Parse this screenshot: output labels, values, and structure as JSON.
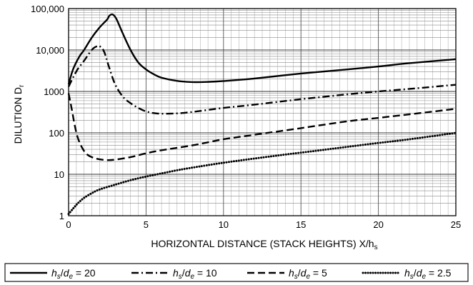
{
  "chart_data": {
    "type": "line",
    "xlabel": "HORIZONTAL DISTANCE (STACK HEIGHTS) X/h",
    "xlabel_sub": "s",
    "ylabel": "DILUTION D",
    "ylabel_sub": "r",
    "x_scale": "linear",
    "y_scale": "log",
    "xlim": [
      0,
      25
    ],
    "ylim": [
      1,
      100000
    ],
    "x_ticks": [
      0,
      5,
      10,
      15,
      20,
      25
    ],
    "x_tick_labels": [
      "0",
      "5",
      "10",
      "15",
      "20",
      "25"
    ],
    "y_ticks": [
      1,
      10,
      100,
      1000,
      10000,
      100000
    ],
    "y_tick_labels": [
      "1",
      "10",
      "100",
      "1000",
      "10,000",
      "100,000"
    ],
    "grid": true,
    "legend_position": "bottom",
    "series": [
      {
        "name": "h",
        "legend": {
          "a": "h",
          "a_sub": "s",
          "b": "d",
          "b_sub": "e",
          "value": "= 20"
        },
        "style": "solid",
        "points": [
          [
            0,
            1500
          ],
          [
            0.3,
            3500
          ],
          [
            0.7,
            7000
          ],
          [
            1,
            10000
          ],
          [
            1.5,
            20000
          ],
          [
            2,
            35000
          ],
          [
            2.5,
            55000
          ],
          [
            2.6,
            65000
          ],
          [
            2.75,
            72000
          ],
          [
            2.9,
            70000
          ],
          [
            3.1,
            55000
          ],
          [
            3.5,
            25000
          ],
          [
            4,
            10000
          ],
          [
            4.5,
            5000
          ],
          [
            5,
            3400
          ],
          [
            5.5,
            2600
          ],
          [
            6,
            2150
          ],
          [
            7,
            1800
          ],
          [
            8,
            1680
          ],
          [
            9,
            1700
          ],
          [
            10,
            1780
          ],
          [
            12,
            2050
          ],
          [
            15,
            2700
          ],
          [
            18,
            3400
          ],
          [
            20,
            4000
          ],
          [
            22,
            4800
          ],
          [
            25,
            6000
          ]
        ]
      },
      {
        "name": "h",
        "legend": {
          "a": "h",
          "a_sub": "s",
          "b": "d",
          "b_sub": "e",
          "value": "= 10"
        },
        "style": "dashdot",
        "points": [
          [
            0,
            1300
          ],
          [
            0.3,
            2200
          ],
          [
            0.6,
            3500
          ],
          [
            1,
            5500
          ],
          [
            1.3,
            8000
          ],
          [
            1.6,
            11000
          ],
          [
            1.9,
            12500
          ],
          [
            2.05,
            12000
          ],
          [
            2.3,
            9000
          ],
          [
            2.6,
            4000
          ],
          [
            3,
            1500
          ],
          [
            3.5,
            750
          ],
          [
            4,
            520
          ],
          [
            4.5,
            400
          ],
          [
            5,
            330
          ],
          [
            5.5,
            300
          ],
          [
            6,
            290
          ],
          [
            7,
            295
          ],
          [
            8,
            320
          ],
          [
            10,
            400
          ],
          [
            12,
            480
          ],
          [
            15,
            650
          ],
          [
            18,
            850
          ],
          [
            20,
            1000
          ],
          [
            22,
            1150
          ],
          [
            25,
            1450
          ]
        ]
      },
      {
        "name": "h",
        "legend": {
          "a": "h",
          "a_sub": "s",
          "b": "d",
          "b_sub": "e",
          "value": "= 5"
        },
        "style": "dashed",
        "points": [
          [
            0,
            900
          ],
          [
            0.2,
            380
          ],
          [
            0.4,
            150
          ],
          [
            0.6,
            75
          ],
          [
            0.9,
            42
          ],
          [
            1.2,
            30
          ],
          [
            1.6,
            25
          ],
          [
            2,
            23
          ],
          [
            2.5,
            22
          ],
          [
            3,
            22.5
          ],
          [
            4,
            26
          ],
          [
            5,
            32
          ],
          [
            6,
            38
          ],
          [
            8,
            50
          ],
          [
            10,
            70
          ],
          [
            12,
            90
          ],
          [
            15,
            130
          ],
          [
            18,
            190
          ],
          [
            20,
            230
          ],
          [
            22,
            280
          ],
          [
            25,
            380
          ]
        ]
      },
      {
        "name": "h",
        "legend": {
          "a": "h",
          "a_sub": "s",
          "b": "d",
          "b_sub": "e",
          "value": "= 2.5"
        },
        "style": "dotted",
        "points": [
          [
            0,
            1.1
          ],
          [
            0.3,
            1.5
          ],
          [
            0.6,
            2
          ],
          [
            1,
            2.7
          ],
          [
            1.5,
            3.5
          ],
          [
            2,
            4.3
          ],
          [
            3,
            5.6
          ],
          [
            4,
            7.2
          ],
          [
            5,
            8.8
          ],
          [
            6,
            10.5
          ],
          [
            7,
            12.5
          ],
          [
            8,
            14.5
          ],
          [
            10,
            19
          ],
          [
            12,
            24
          ],
          [
            14,
            30
          ],
          [
            16,
            37
          ],
          [
            18,
            46
          ],
          [
            20,
            57
          ],
          [
            22,
            70
          ],
          [
            25,
            100
          ]
        ]
      }
    ]
  }
}
